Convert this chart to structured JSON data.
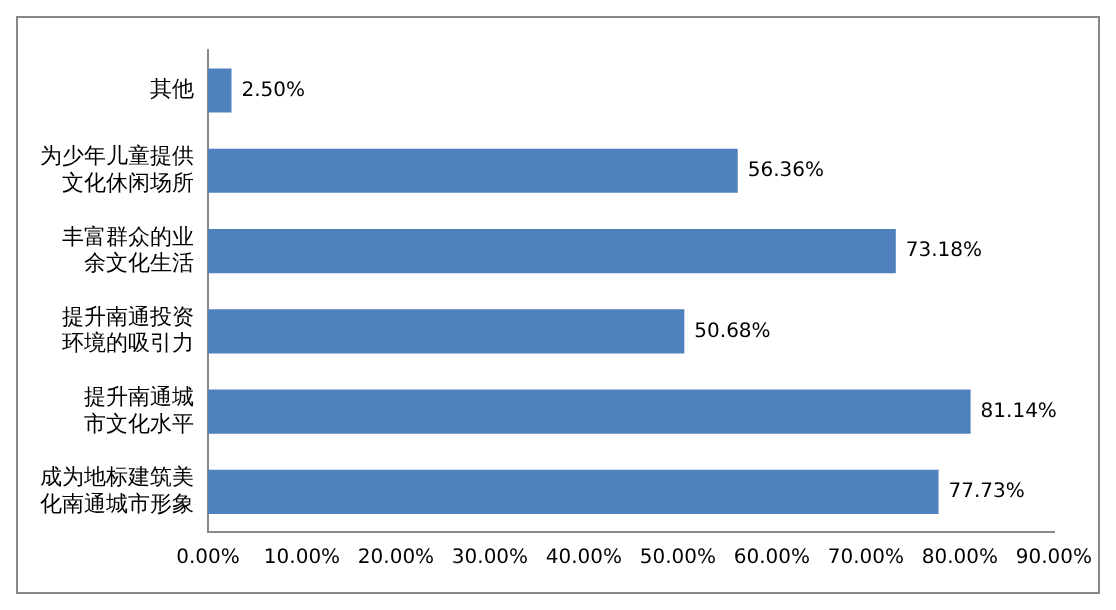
{
  "chart_data": {
    "type": "bar",
    "orientation": "horizontal",
    "categories": [
      "其他",
      "为少年儿童提供文化休闲场所",
      "丰富群众的业余文化生活",
      "提升南通投资环境的吸引力",
      "提升南通城市文化水平",
      "成为地标建筑美化南通城市形象"
    ],
    "values": [
      2.5,
      56.36,
      73.18,
      50.68,
      81.14,
      77.73
    ],
    "value_labels": [
      "2.50%",
      "56.36%",
      "73.18%",
      "50.68%",
      "81.14%",
      "77.73%"
    ],
    "color": "#4f81bd",
    "xlim": [
      0,
      90
    ],
    "xticks": [
      {
        "value": 0,
        "label": "0.00%"
      },
      {
        "value": 10,
        "label": "10.00%"
      },
      {
        "value": 20,
        "label": "20.00%"
      },
      {
        "value": 30,
        "label": "30.00%"
      },
      {
        "value": 40,
        "label": "40.00%"
      },
      {
        "value": 50,
        "label": "50.00%"
      },
      {
        "value": 60,
        "label": "60.00%"
      },
      {
        "value": 70,
        "label": "70.00%"
      },
      {
        "value": 80,
        "label": "80.00%"
      },
      {
        "value": 90,
        "label": "90.00%"
      }
    ],
    "grid": false,
    "legend": false
  }
}
